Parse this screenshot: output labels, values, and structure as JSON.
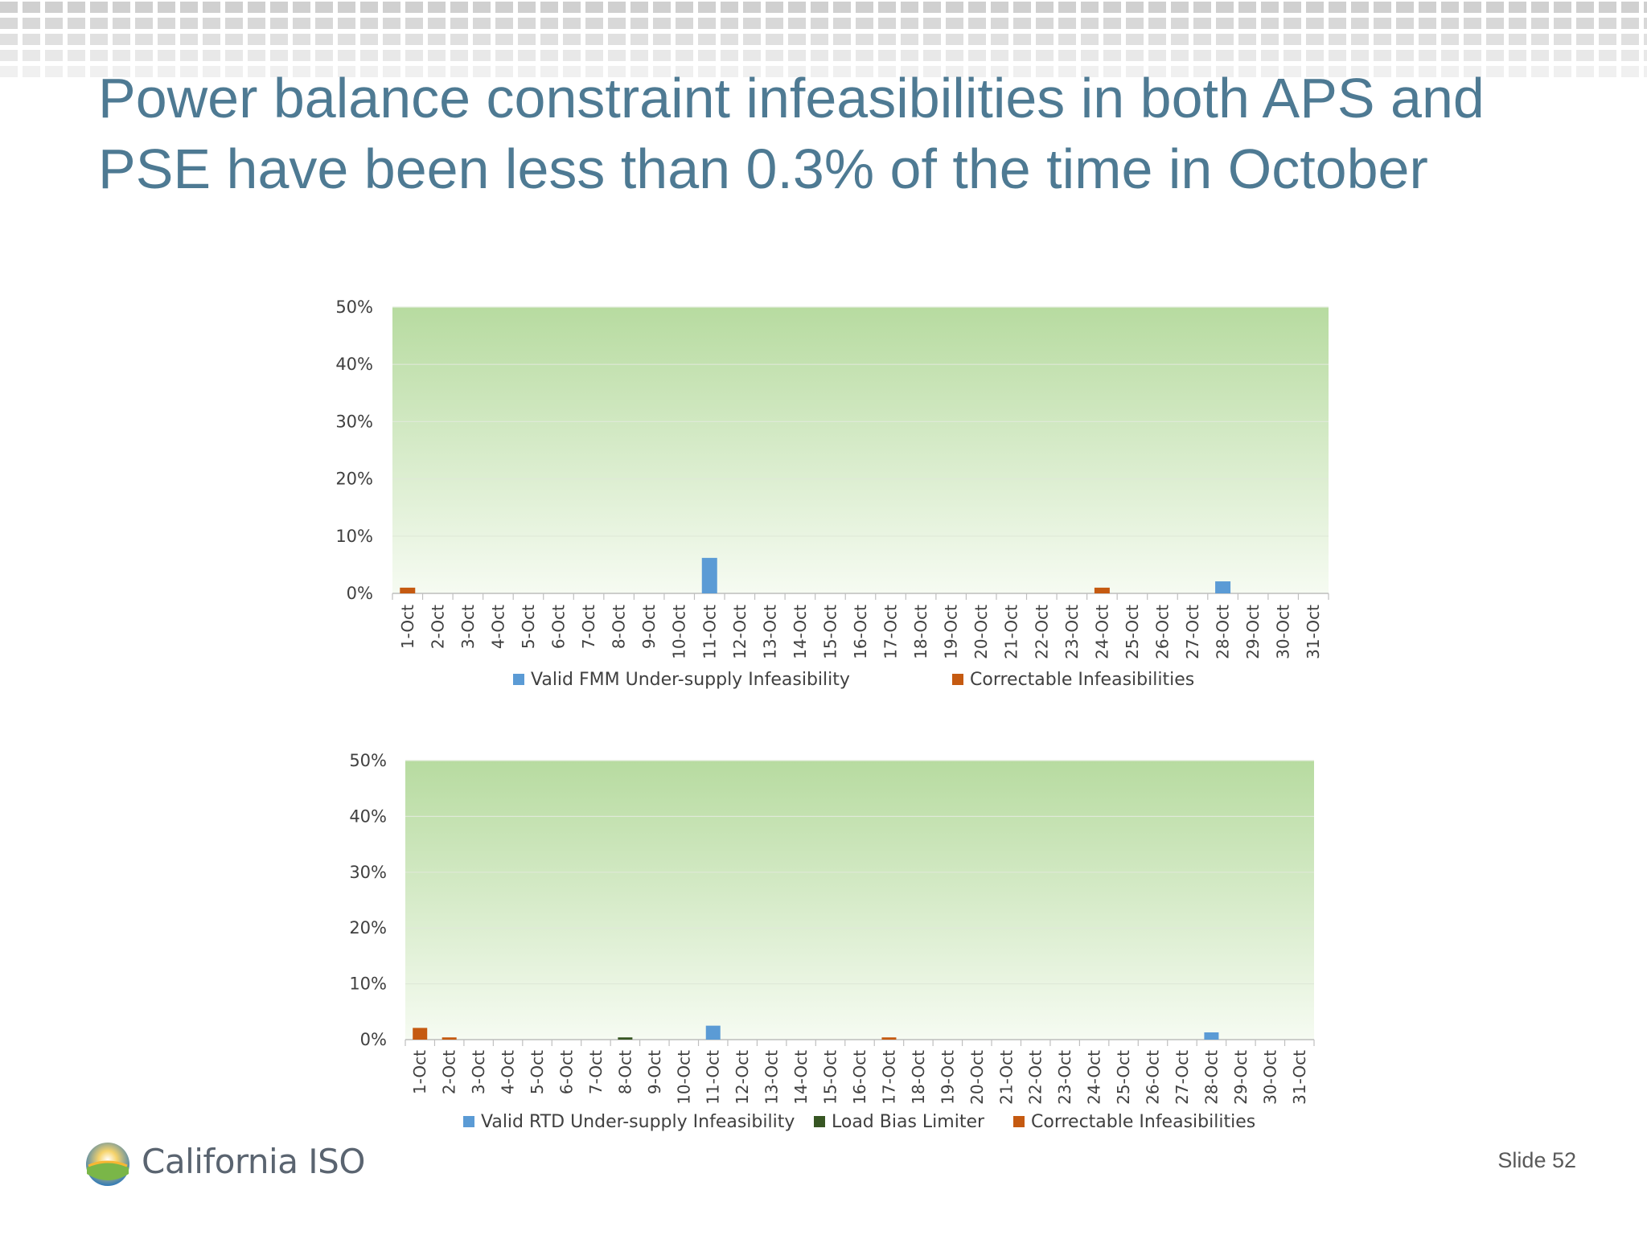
{
  "title": "Power balance constraint infeasibilities in both APS and PSE have been less than 0.3% of the time in October",
  "slide_number": "Slide 52",
  "logo_text": "California ISO",
  "colors": {
    "title": "#4e7a93",
    "valid": "#5b9bd5",
    "correctable": "#c55a11",
    "load_bias": "#375623",
    "plot_top": "#b7dba0",
    "plot_bottom": "#f6fbf2"
  },
  "chart_data": [
    {
      "type": "bar",
      "categories": [
        "1-Oct",
        "2-Oct",
        "3-Oct",
        "4-Oct",
        "5-Oct",
        "6-Oct",
        "7-Oct",
        "8-Oct",
        "9-Oct",
        "10-Oct",
        "11-Oct",
        "12-Oct",
        "13-Oct",
        "14-Oct",
        "15-Oct",
        "16-Oct",
        "17-Oct",
        "18-Oct",
        "19-Oct",
        "20-Oct",
        "21-Oct",
        "22-Oct",
        "23-Oct",
        "24-Oct",
        "25-Oct",
        "26-Oct",
        "27-Oct",
        "28-Oct",
        "29-Oct",
        "30-Oct",
        "31-Oct"
      ],
      "y_ticks": [
        "0%",
        "10%",
        "20%",
        "30%",
        "40%",
        "50%"
      ],
      "ylim": [
        0,
        50
      ],
      "legend_position": "bottom",
      "series": [
        {
          "name": "Valid  FMM Under-supply Infeasibility",
          "color": "#5b9bd5",
          "values": [
            0,
            0,
            0,
            0,
            0,
            0,
            0,
            0,
            0,
            0,
            6.2,
            0,
            0,
            0,
            0,
            0,
            0,
            0,
            0,
            0,
            0,
            0,
            0,
            0,
            0,
            0,
            0,
            2.1,
            0,
            0,
            0
          ]
        },
        {
          "name": "Correctable Infeasibilities",
          "color": "#c55a11",
          "values": [
            1.0,
            0,
            0,
            0,
            0,
            0,
            0,
            0,
            0,
            0,
            0,
            0,
            0,
            0,
            0,
            0,
            0,
            0,
            0,
            0,
            0,
            0,
            0,
            1.0,
            0,
            0,
            0,
            0,
            0,
            0,
            0
          ]
        }
      ]
    },
    {
      "type": "bar",
      "categories": [
        "1-Oct",
        "2-Oct",
        "3-Oct",
        "4-Oct",
        "5-Oct",
        "6-Oct",
        "7-Oct",
        "8-Oct",
        "9-Oct",
        "10-Oct",
        "11-Oct",
        "12-Oct",
        "13-Oct",
        "14-Oct",
        "15-Oct",
        "16-Oct",
        "17-Oct",
        "18-Oct",
        "19-Oct",
        "20-Oct",
        "21-Oct",
        "22-Oct",
        "23-Oct",
        "24-Oct",
        "25-Oct",
        "26-Oct",
        "27-Oct",
        "28-Oct",
        "29-Oct",
        "30-Oct",
        "31-Oct"
      ],
      "y_ticks": [
        "0%",
        "10%",
        "20%",
        "30%",
        "40%",
        "50%"
      ],
      "ylim": [
        0,
        50
      ],
      "legend_position": "bottom",
      "series": [
        {
          "name": "Valid RTD Under-supply Infeasibility",
          "color": "#5b9bd5",
          "values": [
            0,
            0,
            0,
            0,
            0,
            0,
            0,
            0,
            0,
            0,
            2.5,
            0,
            0,
            0,
            0,
            0,
            0,
            0,
            0,
            0,
            0,
            0,
            0,
            0,
            0,
            0,
            0,
            1.3,
            0,
            0,
            0
          ]
        },
        {
          "name": "Load Bias Limiter",
          "color": "#375623",
          "values": [
            0,
            0,
            0,
            0,
            0,
            0,
            0,
            0.4,
            0,
            0,
            0,
            0,
            0,
            0,
            0,
            0,
            0,
            0,
            0,
            0,
            0,
            0,
            0,
            0,
            0,
            0,
            0,
            0,
            0,
            0,
            0
          ]
        },
        {
          "name": "Correctable Infeasibilities",
          "color": "#c55a11",
          "values": [
            2.1,
            0.4,
            0,
            0,
            0,
            0,
            0,
            0,
            0,
            0,
            0,
            0,
            0,
            0,
            0,
            0,
            0.4,
            0,
            0,
            0,
            0,
            0,
            0,
            0,
            0,
            0,
            0,
            0,
            0,
            0,
            0
          ]
        }
      ]
    }
  ]
}
